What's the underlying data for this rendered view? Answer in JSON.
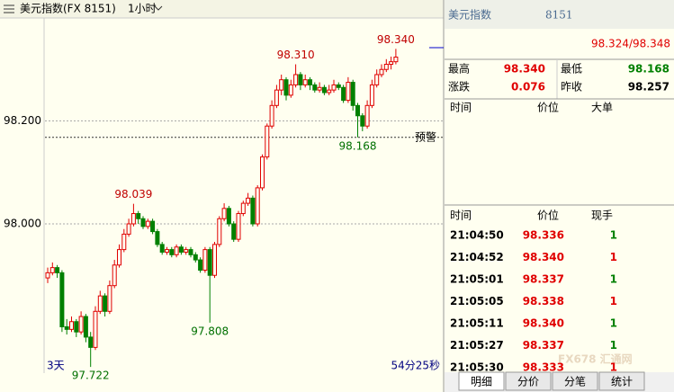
{
  "header": {
    "title": "美元指数(FX 8151)",
    "period": "1小时"
  },
  "chart_data": {
    "type": "candlestick",
    "ohlc": [
      [
        97.895,
        97.915,
        97.885,
        97.905
      ],
      [
        97.905,
        97.925,
        97.9,
        97.915
      ],
      [
        97.915,
        97.92,
        97.895,
        97.905
      ],
      [
        97.905,
        97.91,
        97.79,
        97.8
      ],
      [
        97.8,
        97.815,
        97.785,
        97.795
      ],
      [
        97.795,
        97.82,
        97.79,
        97.81
      ],
      [
        97.81,
        97.815,
        97.78,
        97.79
      ],
      [
        97.79,
        97.83,
        97.785,
        97.82
      ],
      [
        97.82,
        97.825,
        97.77,
        97.78
      ],
      [
        97.78,
        97.79,
        97.722,
        97.76
      ],
      [
        97.76,
        97.84,
        97.755,
        97.83
      ],
      [
        97.83,
        97.87,
        97.825,
        97.86
      ],
      [
        97.86,
        97.865,
        97.82,
        97.83
      ],
      [
        97.83,
        97.89,
        97.825,
        97.88
      ],
      [
        97.88,
        97.93,
        97.875,
        97.92
      ],
      [
        97.92,
        97.96,
        97.915,
        97.95
      ],
      [
        97.95,
        97.99,
        97.945,
        97.98
      ],
      [
        97.98,
        98.01,
        97.975,
        98.0
      ],
      [
        98.0,
        98.039,
        97.995,
        98.02
      ],
      [
        98.02,
        98.025,
        98.0,
        98.01
      ],
      [
        98.01,
        98.015,
        97.99,
        97.995
      ],
      [
        97.995,
        98.01,
        97.99,
        98.005
      ],
      [
        98.005,
        98.01,
        97.98,
        97.985
      ],
      [
        97.985,
        97.99,
        97.955,
        97.96
      ],
      [
        97.96,
        97.965,
        97.94,
        97.945
      ],
      [
        97.945,
        97.955,
        97.94,
        97.95
      ],
      [
        97.95,
        97.955,
        97.935,
        97.94
      ],
      [
        97.94,
        97.96,
        97.935,
        97.955
      ],
      [
        97.955,
        97.96,
        97.94,
        97.945
      ],
      [
        97.945,
        97.955,
        97.94,
        97.95
      ],
      [
        97.95,
        97.955,
        97.935,
        97.94
      ],
      [
        97.94,
        97.945,
        97.925,
        97.93
      ],
      [
        97.93,
        97.935,
        97.905,
        97.91
      ],
      [
        97.91,
        97.955,
        97.905,
        97.95
      ],
      [
        97.95,
        97.955,
        97.808,
        97.9
      ],
      [
        97.9,
        97.965,
        97.895,
        97.96
      ],
      [
        97.96,
        98.015,
        97.955,
        98.01
      ],
      [
        98.01,
        98.04,
        98.005,
        98.03
      ],
      [
        98.03,
        98.035,
        97.995,
        98.0
      ],
      [
        98.0,
        98.005,
        97.965,
        97.97
      ],
      [
        97.97,
        98.025,
        97.965,
        98.02
      ],
      [
        98.02,
        98.045,
        98.015,
        98.04
      ],
      [
        98.04,
        98.06,
        98.035,
        98.05
      ],
      [
        98.05,
        98.055,
        97.995,
        98.0
      ],
      [
        98.0,
        98.075,
        97.995,
        98.07
      ],
      [
        98.07,
        98.135,
        98.065,
        98.13
      ],
      [
        98.13,
        98.195,
        98.125,
        98.19
      ],
      [
        98.19,
        98.24,
        98.185,
        98.23
      ],
      [
        98.23,
        98.27,
        98.225,
        98.26
      ],
      [
        98.26,
        98.29,
        98.25,
        98.28
      ],
      [
        98.28,
        98.285,
        98.24,
        98.25
      ],
      [
        98.25,
        98.28,
        98.245,
        98.27
      ],
      [
        98.27,
        98.31,
        98.265,
        98.29
      ],
      [
        98.29,
        98.295,
        98.26,
        98.27
      ],
      [
        98.27,
        98.29,
        98.265,
        98.28
      ],
      [
        98.28,
        98.285,
        98.26,
        98.27
      ],
      [
        98.27,
        98.275,
        98.255,
        98.26
      ],
      [
        98.26,
        98.275,
        98.255,
        98.265
      ],
      [
        98.265,
        98.27,
        98.25,
        98.255
      ],
      [
        98.255,
        98.27,
        98.25,
        98.26
      ],
      [
        98.26,
        98.28,
        98.255,
        98.27
      ],
      [
        98.27,
        98.275,
        98.26,
        98.265
      ],
      [
        98.265,
        98.27,
        98.235,
        98.24
      ],
      [
        98.24,
        98.285,
        98.235,
        98.275
      ],
      [
        98.275,
        98.28,
        98.22,
        98.23
      ],
      [
        98.23,
        98.235,
        98.168,
        98.21
      ],
      [
        98.21,
        98.215,
        98.18,
        98.19
      ],
      [
        98.19,
        98.24,
        98.185,
        98.23
      ],
      [
        98.23,
        98.28,
        98.225,
        98.27
      ],
      [
        98.27,
        98.3,
        98.265,
        98.29
      ],
      [
        98.29,
        98.31,
        98.285,
        98.3
      ],
      [
        98.3,
        98.32,
        98.295,
        98.31
      ],
      [
        98.31,
        98.325,
        98.3,
        98.315
      ],
      [
        98.315,
        98.34,
        98.31,
        98.324
      ]
    ],
    "up_color": "#e00000",
    "down_color": "#008000",
    "ylim": [
      97.71,
      98.4
    ],
    "yticks": [
      {
        "value": 98.0,
        "label": "98.000"
      },
      {
        "value": 98.2,
        "label": "98.200"
      }
    ],
    "grid": true,
    "annotations": [
      "98.310",
      "98.039",
      "97.808",
      "97.722",
      "98.168",
      "98.340"
    ],
    "alert": {
      "label": "预警",
      "value": 98.168
    },
    "range_label": "3天",
    "countdown": "54分25秒"
  },
  "quote": {
    "name": "美元指数",
    "code": "8151",
    "price": "98.324/98.348",
    "stats": [
      [
        "最高",
        "98.340",
        "最低",
        "98.168"
      ],
      [
        "涨跌",
        "0.076",
        "昨收",
        "98.257"
      ]
    ]
  },
  "big_orders": {
    "columns": [
      "时间",
      "价位",
      "大单"
    ]
  },
  "ticks_table": {
    "columns": [
      "时间",
      "价位",
      "现手"
    ],
    "rows": [
      [
        "21:04:50",
        "98.336",
        "1"
      ],
      [
        "21:04:52",
        "98.340",
        "1"
      ],
      [
        "21:05:01",
        "98.337",
        "1"
      ],
      [
        "21:05:05",
        "98.338",
        "1"
      ],
      [
        "21:05:11",
        "98.340",
        "1"
      ],
      [
        "21:05:27",
        "98.337",
        "1"
      ],
      [
        "21:05:30",
        "98.333",
        "1"
      ]
    ],
    "volume_colors": [
      "#008000",
      "#e00000",
      "#008000",
      "#e00000",
      "#008000",
      "#008000",
      "#e00000"
    ]
  },
  "tabs": [
    "明细",
    "分价",
    "分笔",
    "统计"
  ],
  "watermark": "FX678 汇通网"
}
